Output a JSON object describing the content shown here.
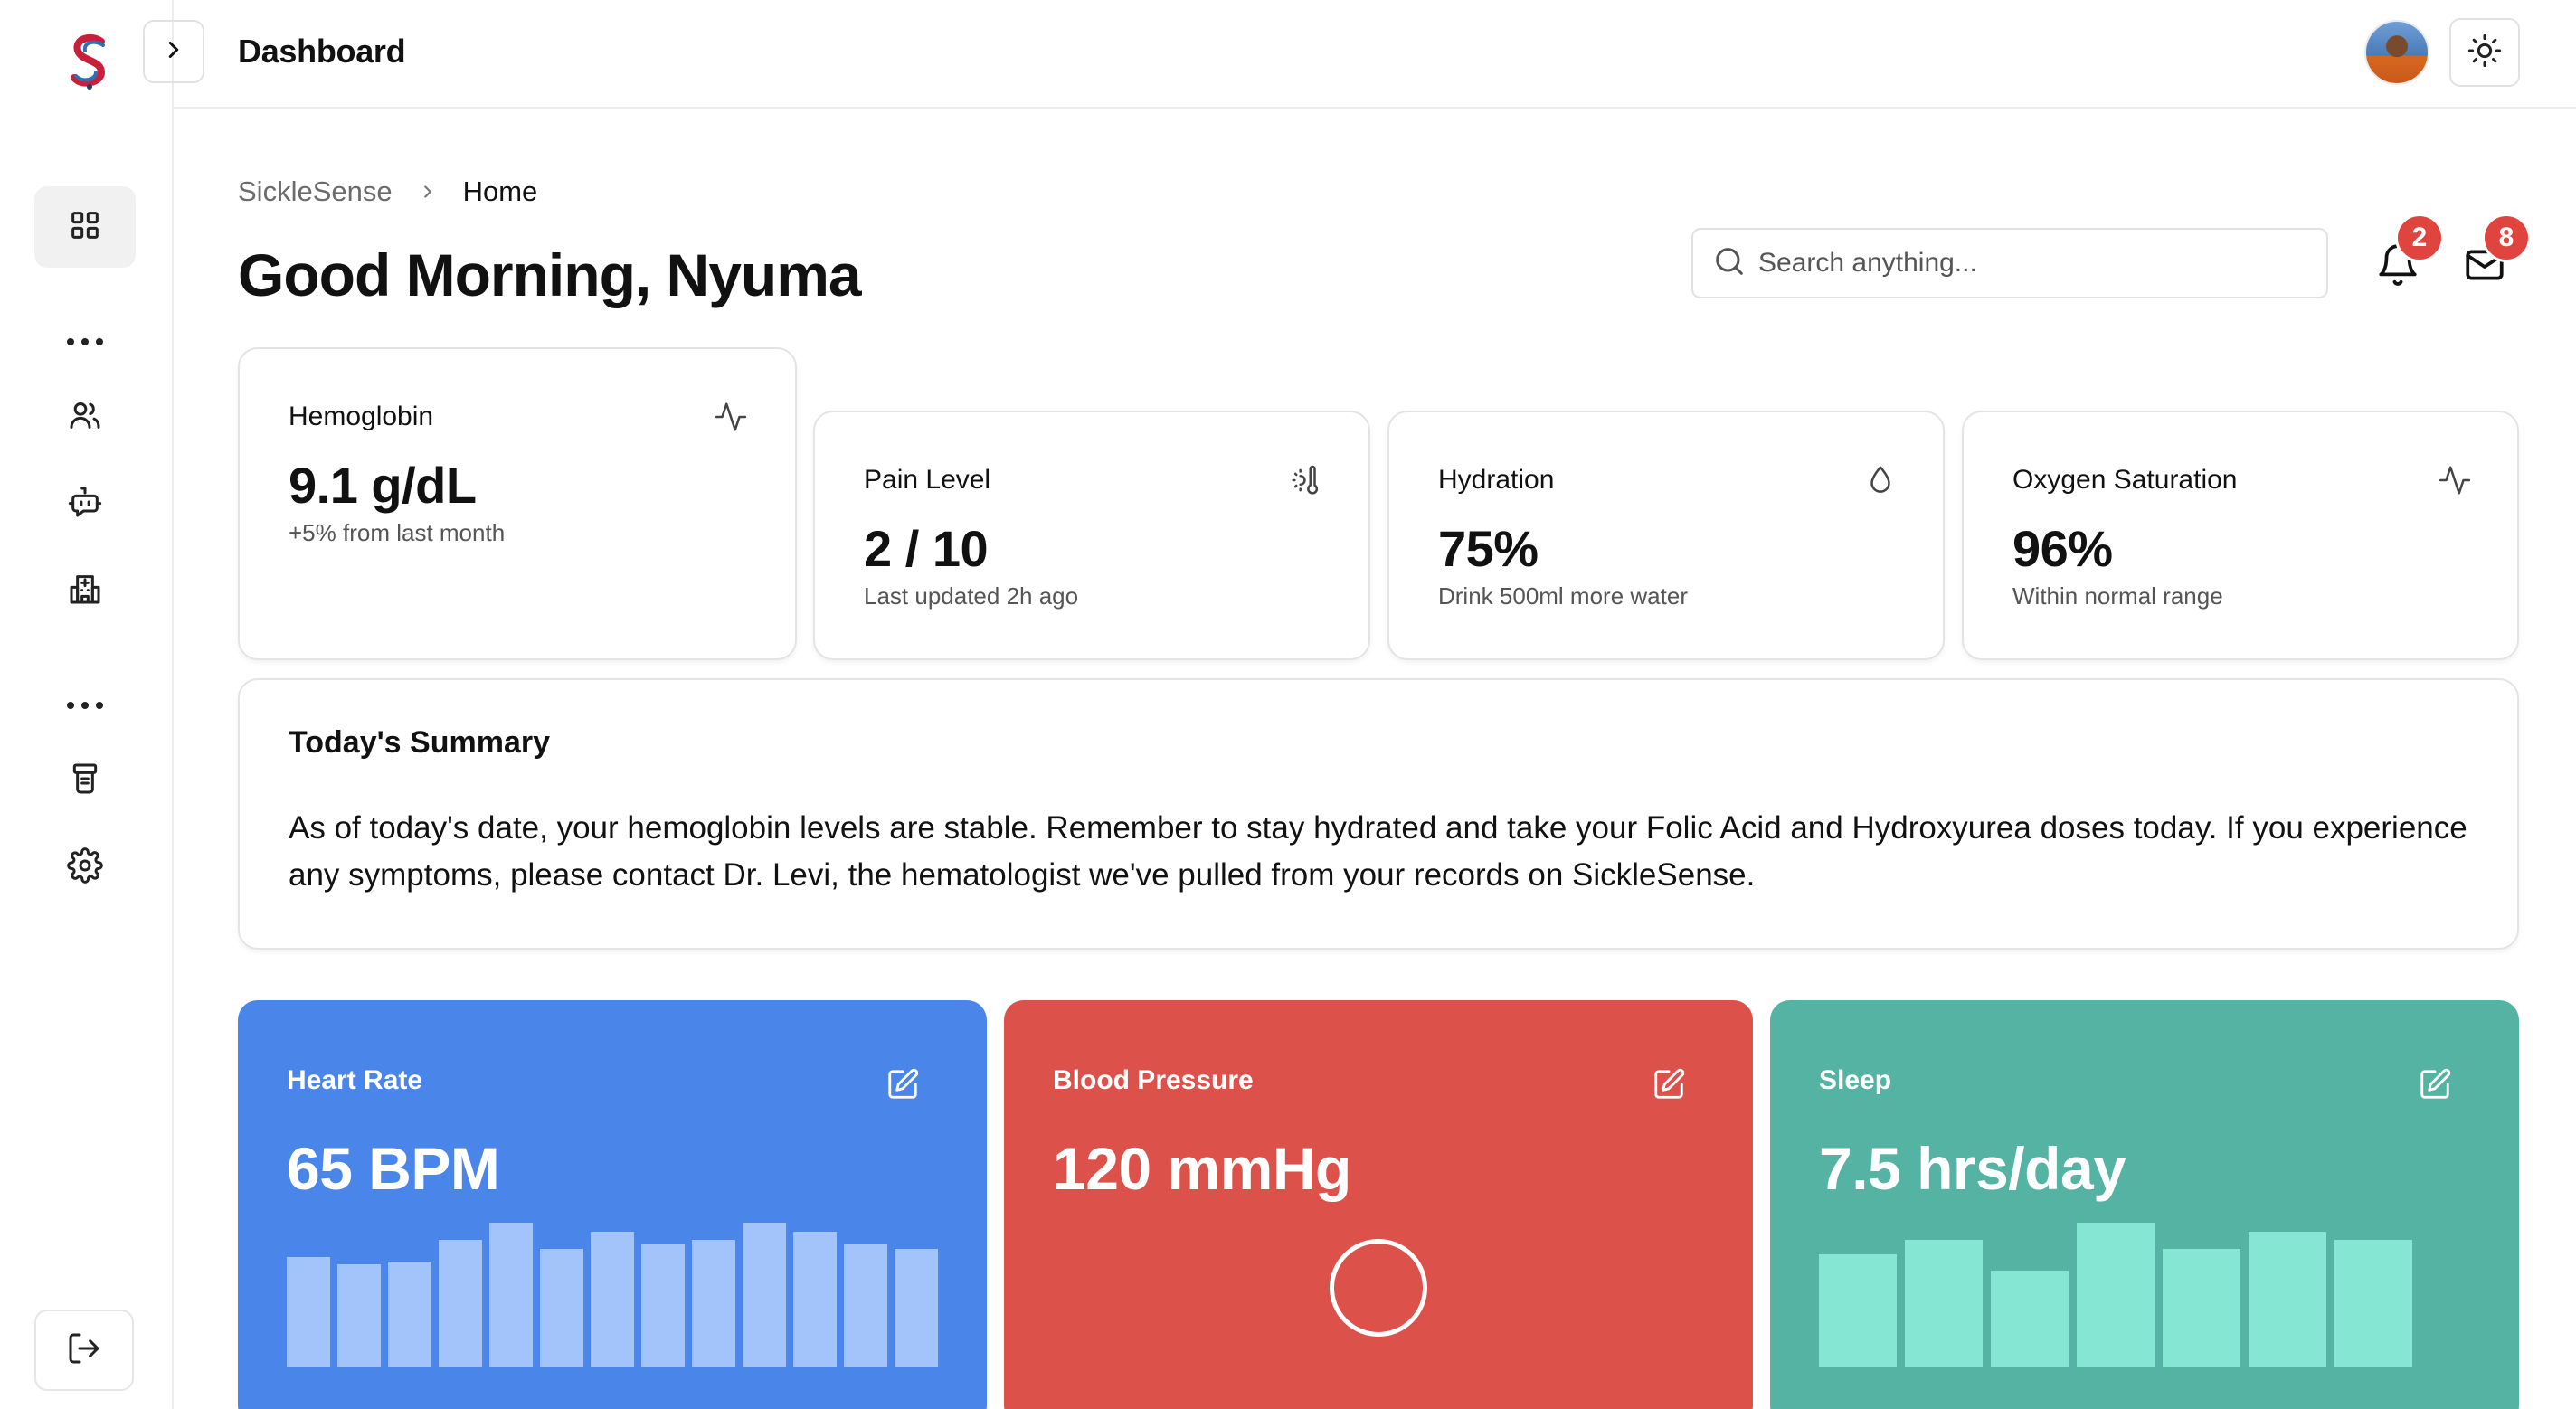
{
  "app": {
    "title": "Dashboard"
  },
  "sidebar": {
    "items": [
      {
        "name": "dashboard",
        "icon": "grid-icon",
        "active": true
      },
      {
        "name": "people",
        "icon": "users-icon"
      },
      {
        "name": "chat-bot",
        "icon": "bot-chat-icon"
      },
      {
        "name": "hospital",
        "icon": "hospital-icon"
      },
      {
        "name": "medication",
        "icon": "pill-bottle-icon"
      },
      {
        "name": "settings",
        "icon": "gear-icon"
      }
    ],
    "logout_icon": "logout-icon"
  },
  "breadcrumb": {
    "root": "SickleSense",
    "current": "Home"
  },
  "greeting": "Good Morning, Nyuma",
  "search": {
    "placeholder": "Search anything..."
  },
  "notifications": {
    "count": "2"
  },
  "messages": {
    "count": "8"
  },
  "stats": [
    {
      "label": "Hemoglobin",
      "value": "9.1 g/dL",
      "sub": "+5% from last month",
      "icon": "activity-icon"
    },
    {
      "label": "Pain Level",
      "value": "2 / 10",
      "sub": "Last updated 2h ago",
      "icon": "thermometer-sun-icon"
    },
    {
      "label": "Hydration",
      "value": "75%",
      "sub": "Drink 500ml more water",
      "icon": "droplet-icon"
    },
    {
      "label": "Oxygen Saturation",
      "value": "96%",
      "sub": "Within normal range",
      "icon": "activity-icon"
    }
  ],
  "summary": {
    "title": "Today's Summary",
    "text": "As of today's date, your hemoglobin levels are stable. Remember to stay hydrated and take your Folic Acid and Hydroxyurea doses today. If you experience any symptoms, please contact Dr. Levi, the hematologist we've pulled from your records on SickleSense."
  },
  "metrics": [
    {
      "label": "Heart Rate",
      "value": "65 BPM",
      "color": "#4a85ea",
      "bar_color": "#a3c4fa",
      "bar_levels": [
        0.76,
        0.71,
        0.73,
        0.88,
        1.0,
        0.82,
        0.94,
        0.85,
        0.88,
        1.0,
        0.94,
        0.85,
        0.82
      ]
    },
    {
      "label": "Blood Pressure",
      "value": "120 mmHg",
      "color": "#dd514b",
      "ring_color": "#ffffff"
    },
    {
      "label": "Sleep",
      "value": "7.5 hrs/day",
      "color": "#55b3a4",
      "bar_color": "#85e6d4",
      "bar_levels": [
        0.78,
        0.88,
        0.67,
        1.0,
        0.82,
        0.94,
        0.88
      ]
    }
  ],
  "colors": {
    "badge": "#e0443e",
    "border": "#e4e4e4"
  }
}
